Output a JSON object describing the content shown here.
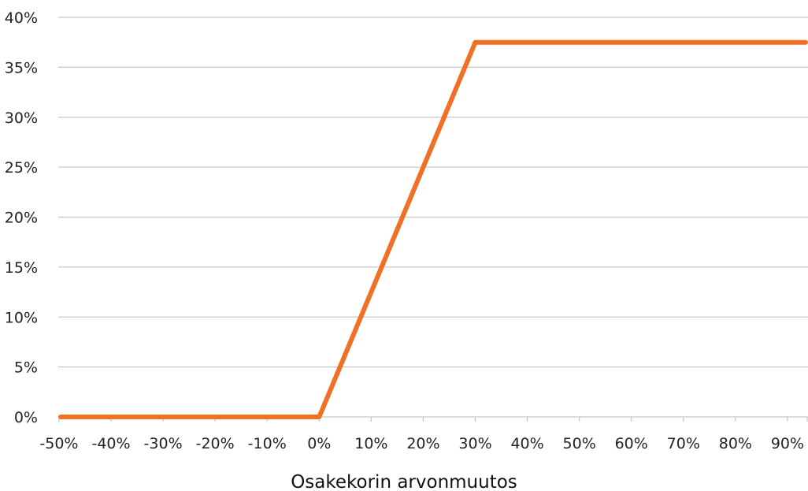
{
  "chart_data": {
    "type": "line",
    "title": "",
    "xlabel": "Osakekorin arvonmuutos",
    "ylabel": "",
    "x_ticks": [
      "-50%",
      "-40%",
      "-30%",
      "-20%",
      "-10%",
      "0%",
      "10%",
      "20%",
      "30%",
      "40%",
      "50%",
      "60%",
      "70%",
      "80%",
      "90%"
    ],
    "y_ticks": [
      "0%",
      "5%",
      "10%",
      "15%",
      "20%",
      "25%",
      "30%",
      "35%",
      "40%"
    ],
    "xlim": [
      -50,
      95
    ],
    "ylim": [
      0,
      40
    ],
    "grid": "horizontal",
    "legend": "none",
    "series": [
      {
        "color": "#F07125",
        "x": [
          -50,
          0,
          30,
          95
        ],
        "y": [
          0,
          0,
          37.5,
          37.5
        ]
      }
    ]
  },
  "colors": {
    "series": "#F07125",
    "grid": "#C8C8C8",
    "axis": "#C8C8C8"
  }
}
